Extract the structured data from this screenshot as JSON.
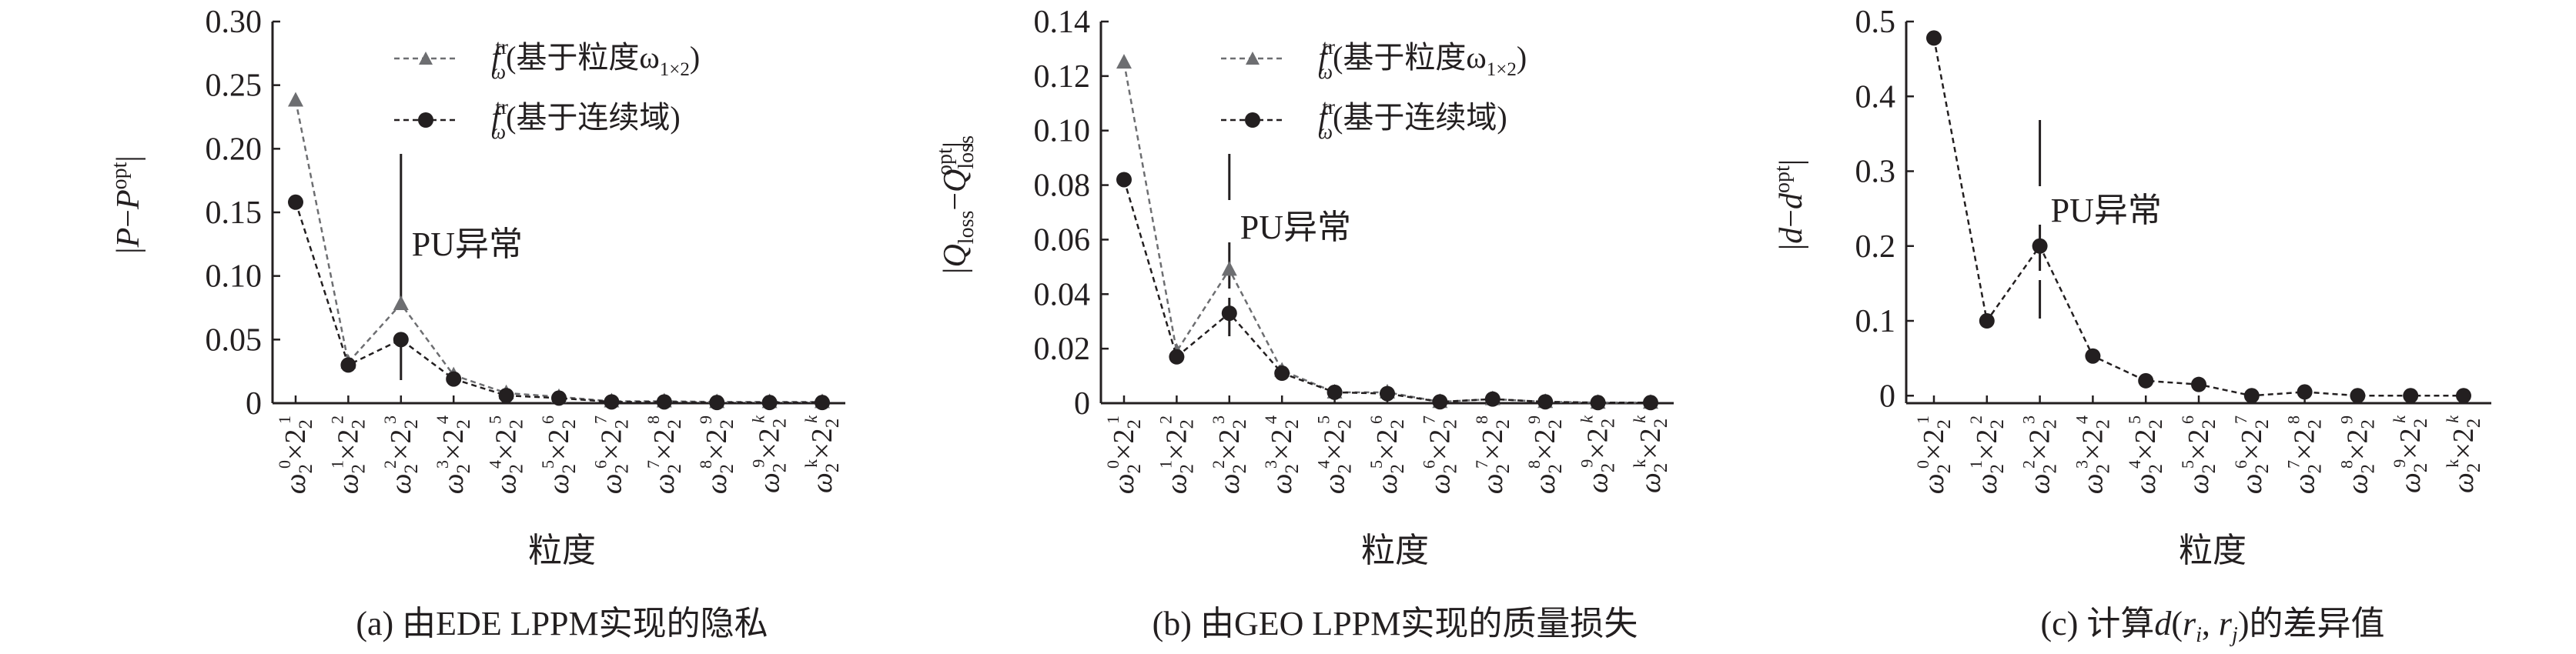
{
  "chart_data": [
    {
      "type": "line",
      "x": [
        "ω2^{0}×2^{1}",
        "ω2^{1}×2^{2}",
        "ω2^{2}×2^{3}",
        "ω2^{3}×2^{4}",
        "ω2^{4}×2^{5}",
        "ω2^{5}×2^{6}",
        "ω2^{6}×2^{7}",
        "ω2^{7}×2^{8}",
        "ω2^{8}×2^{9}",
        "ω2^{9}×2^{k}",
        "ω2^{k}×2^{k}"
      ],
      "xticks": [
        {
          "base": "ω",
          "sub": "2",
          "e1": "0",
          "e2": "1"
        },
        {
          "base": "ω",
          "sub": "2",
          "e1": "1",
          "e2": "2"
        },
        {
          "base": "ω",
          "sub": "2",
          "e1": "2",
          "e2": "3"
        },
        {
          "base": "ω",
          "sub": "2",
          "e1": "3",
          "e2": "4"
        },
        {
          "base": "ω",
          "sub": "2",
          "e1": "4",
          "e2": "5"
        },
        {
          "base": "ω",
          "sub": "2",
          "e1": "5",
          "e2": "6"
        },
        {
          "base": "ω",
          "sub": "2",
          "e1": "6",
          "e2": "7"
        },
        {
          "base": "ω",
          "sub": "2",
          "e1": "7",
          "e2": "8"
        },
        {
          "base": "ω",
          "sub": "2",
          "e1": "8",
          "e2": "9"
        },
        {
          "base": "ω",
          "sub": "2",
          "e1": "9",
          "e2": "k"
        },
        {
          "base": "ω",
          "sub": "2",
          "e1": "k",
          "e2": "k"
        }
      ],
      "series": [
        {
          "name": "f_ω^tr(基于粒度ω1×2)",
          "marker": "triangle",
          "color": "#6d6e71",
          "values": [
            0.238,
            0.032,
            0.078,
            0.022,
            0.008,
            0.005,
            0.0015,
            0.0015,
            0.001,
            0.001,
            0.001
          ]
        },
        {
          "name": "f_ω^tr(基于连续域)",
          "marker": "circle",
          "color": "#231f20",
          "values": [
            0.158,
            0.03,
            0.05,
            0.019,
            0.006,
            0.004,
            0.001,
            0.001,
            0.0005,
            0.0005,
            0.0005
          ]
        }
      ],
      "ylim": [
        0,
        0.3
      ],
      "yticks": [
        "0",
        "0.05",
        "0.10",
        "0.15",
        "0.20",
        "0.25",
        "0.30"
      ],
      "ylabel": "|P−P^opt|",
      "xlabel": "粒度",
      "annotation": {
        "text": "PU异常",
        "x_index": 2
      },
      "caption": "(a) 由EDE LPPM实现的隐私",
      "legend_position": "top-right",
      "legend_labels": [
        {
          "f": "f",
          "sup": "tr",
          "sub": "ω",
          "text": "(基于粒度ω",
          "sub2": "1×2",
          "tail": ")"
        },
        {
          "f": "f",
          "sup": "tr",
          "sub": "ω",
          "text": "(基于连续域)",
          "sub2": "",
          "tail": ""
        }
      ]
    },
    {
      "type": "line",
      "x": [
        "ω2^{0}×2^{1}",
        "ω2^{1}×2^{2}",
        "ω2^{2}×2^{3}",
        "ω2^{3}×2^{4}",
        "ω2^{4}×2^{5}",
        "ω2^{5}×2^{6}",
        "ω2^{6}×2^{7}",
        "ω2^{7}×2^{8}",
        "ω2^{8}×2^{9}",
        "ω2^{9}×2^{k}",
        "ω2^{k}×2^{k}"
      ],
      "xticks": [
        {
          "base": "ω",
          "sub": "2",
          "e1": "0",
          "e2": "1"
        },
        {
          "base": "ω",
          "sub": "2",
          "e1": "1",
          "e2": "2"
        },
        {
          "base": "ω",
          "sub": "2",
          "e1": "2",
          "e2": "3"
        },
        {
          "base": "ω",
          "sub": "2",
          "e1": "3",
          "e2": "4"
        },
        {
          "base": "ω",
          "sub": "2",
          "e1": "4",
          "e2": "5"
        },
        {
          "base": "ω",
          "sub": "2",
          "e1": "5",
          "e2": "6"
        },
        {
          "base": "ω",
          "sub": "2",
          "e1": "6",
          "e2": "7"
        },
        {
          "base": "ω",
          "sub": "2",
          "e1": "7",
          "e2": "8"
        },
        {
          "base": "ω",
          "sub": "2",
          "e1": "8",
          "e2": "9"
        },
        {
          "base": "ω",
          "sub": "2",
          "e1": "9",
          "e2": "k"
        },
        {
          "base": "ω",
          "sub": "2",
          "e1": "k",
          "e2": "k"
        }
      ],
      "series": [
        {
          "name": "f_ω^tr(基于粒度ω1×2)",
          "marker": "triangle",
          "color": "#6d6e71",
          "values": [
            0.125,
            0.019,
            0.049,
            0.012,
            0.004,
            0.004,
            0.0005,
            0.0015,
            0.0005,
            0.0002,
            0.0002
          ]
        },
        {
          "name": "f_ω^tr(基于连续域)",
          "marker": "circle",
          "color": "#231f20",
          "values": [
            0.082,
            0.017,
            0.033,
            0.011,
            0.004,
            0.0035,
            0.0005,
            0.0015,
            0.0005,
            0.0002,
            0.0002
          ]
        }
      ],
      "ylim": [
        0,
        0.14
      ],
      "yticks": [
        "0",
        "0.02",
        "0.04",
        "0.06",
        "0.08",
        "0.10",
        "0.12",
        "0.14"
      ],
      "ylabel": "|Q_loss−Q_loss^opt|",
      "xlabel": "粒度",
      "annotation": {
        "text": "PU异常",
        "x_index": 2
      },
      "caption": "(b) 由GEO LPPM实现的质量损失",
      "legend_position": "top-right",
      "legend_labels": [
        {
          "f": "f",
          "sup": "tr",
          "sub": "ω",
          "text": "(基于粒度ω",
          "sub2": "1×2",
          "tail": ")"
        },
        {
          "f": "f",
          "sup": "tr",
          "sub": "ω",
          "text": "(基于连续域)",
          "sub2": "",
          "tail": ""
        }
      ]
    },
    {
      "type": "line",
      "x": [
        "ω2^{0}×2^{1}",
        "ω2^{1}×2^{2}",
        "ω2^{2}×2^{3}",
        "ω2^{3}×2^{4}",
        "ω2^{4}×2^{5}",
        "ω2^{5}×2^{6}",
        "ω2^{6}×2^{7}",
        "ω2^{7}×2^{8}",
        "ω2^{8}×2^{9}",
        "ω2^{9}×2^{k}",
        "ω2^{k}×2^{k}"
      ],
      "xticks": [
        {
          "base": "ω",
          "sub": "2",
          "e1": "0",
          "e2": "1"
        },
        {
          "base": "ω",
          "sub": "2",
          "e1": "1",
          "e2": "2"
        },
        {
          "base": "ω",
          "sub": "2",
          "e1": "2",
          "e2": "3"
        },
        {
          "base": "ω",
          "sub": "2",
          "e1": "3",
          "e2": "4"
        },
        {
          "base": "ω",
          "sub": "2",
          "e1": "4",
          "e2": "5"
        },
        {
          "base": "ω",
          "sub": "2",
          "e1": "5",
          "e2": "6"
        },
        {
          "base": "ω",
          "sub": "2",
          "e1": "6",
          "e2": "7"
        },
        {
          "base": "ω",
          "sub": "2",
          "e1": "7",
          "e2": "8"
        },
        {
          "base": "ω",
          "sub": "2",
          "e1": "8",
          "e2": "9"
        },
        {
          "base": "ω",
          "sub": "2",
          "e1": "9",
          "e2": "k"
        },
        {
          "base": "ω",
          "sub": "2",
          "e1": "k",
          "e2": "k"
        }
      ],
      "series": [
        {
          "name": "",
          "marker": "circle",
          "color": "#231f20",
          "values": [
            0.478,
            0.1,
            0.2,
            0.053,
            0.02,
            0.015,
            0.0,
            0.005,
            0.0,
            0.0,
            0.0
          ]
        }
      ],
      "ylim": [
        -0.01,
        0.5
      ],
      "yticks": [
        "0",
        "0.1",
        "0.2",
        "0.3",
        "0.4",
        "0.5"
      ],
      "ytick_values": [
        0,
        0.1,
        0.2,
        0.3,
        0.4,
        0.5
      ],
      "ylabel": "|d−d^opt|",
      "xlabel": "粒度",
      "annotation": {
        "text": "PU异常",
        "x_index": 2
      },
      "caption": "(c) 计算d(r_i, r_j)的差异值",
      "legend_position": "none"
    }
  ],
  "text": {
    "ylabel_a": {
      "pre": "|",
      "v1": "P",
      "op": "−",
      "v2": "P",
      "sup": "opt",
      "post": "|"
    },
    "ylabel_b": {
      "pre": "|",
      "v1": "Q",
      "sub1": "loss",
      "op": "−",
      "v2": "Q",
      "sub2": "loss",
      "sup": "opt",
      "post": "|"
    },
    "ylabel_c": {
      "pre": "|",
      "v1": "d",
      "op": "−",
      "v2": "d",
      "sup": "opt",
      "post": "|"
    },
    "caption_a": "(a) 由EDE LPPM实现的隐私",
    "caption_b": "(b) 由GEO LPPM实现的质量损失",
    "caption_c": {
      "pre": "(c) 计算",
      "d": "d",
      "lp": "(",
      "r1": "r",
      "i": "i",
      "comma": ", ",
      "r2": "r",
      "j": "j",
      "post": ")的差异值"
    }
  }
}
